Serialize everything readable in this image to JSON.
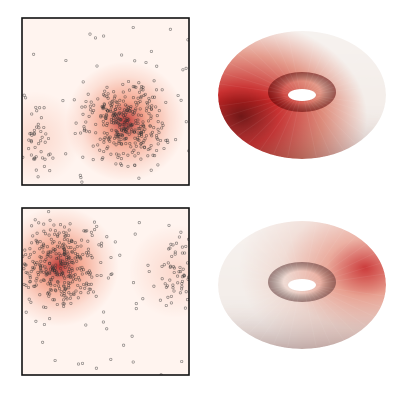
{
  "figure": {
    "colors": {
      "background": "#ffffff",
      "frame": "#111111",
      "density_low": "#fff4ef",
      "density_mid": "#f08060",
      "density_high": "#b01818",
      "point": "#333333",
      "torus_light": "#f4eeea",
      "torus_red": "#c82a2a",
      "torus_dark": "#6a0a0a"
    },
    "panels": [
      {
        "name": "top",
        "cluster_center": [
          0.62,
          0.62
        ],
        "minor_cluster_center": [
          0.08,
          0.72
        ],
        "cluster_spread": 0.12,
        "point_count": 420,
        "torus_hotspot_angle_deg": 205
      },
      {
        "name": "bottom",
        "cluster_center": [
          0.22,
          0.35
        ],
        "minor_cluster_center": [
          0.92,
          0.38
        ],
        "cluster_spread": 0.13,
        "point_count": 420,
        "torus_hotspot_angle_deg": 20
      }
    ]
  }
}
